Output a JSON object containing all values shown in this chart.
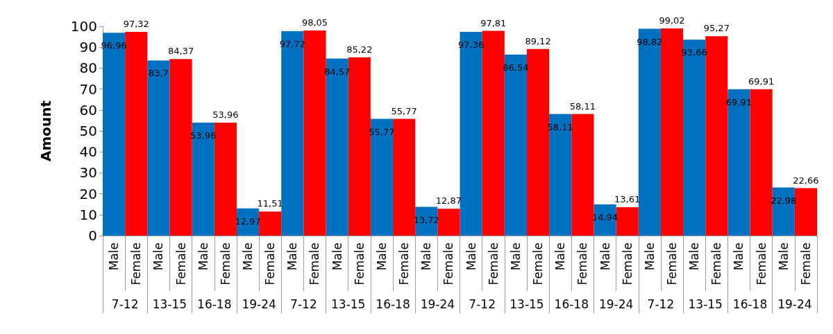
{
  "chart_data": {
    "type": "bar",
    "ylabel": "Amount",
    "categories": [
      "7-12",
      "13-15",
      "16-18",
      "19-24",
      "7-12",
      "13-15",
      "16-18",
      "19-24",
      "7-12",
      "13-15",
      "16-18",
      "19-24",
      "7-12",
      "13-15",
      "16-18",
      "19-24"
    ],
    "series": [
      {
        "name": "Male",
        "color": "#0070c0",
        "values": [
          96.96,
          83.7,
          53.96,
          12.97,
          97.72,
          84.57,
          55.77,
          13.72,
          97.36,
          86.54,
          58.11,
          14.94,
          98.82,
          93.66,
          69.91,
          22.98
        ],
        "value_labels": [
          "96,96",
          "83,7",
          "53,96",
          "12,97",
          "97,72",
          "84,57",
          "55,77",
          "13,72",
          "97,36",
          "86,54",
          "58,11",
          "14,94",
          "98,82",
          "93,66",
          "69,91",
          "22,98"
        ]
      },
      {
        "name": "Female",
        "color": "#ff0000",
        "values": [
          97.32,
          84.37,
          53.96,
          11.51,
          98.05,
          85.22,
          55.77,
          12.87,
          97.81,
          89.12,
          58.11,
          13.61,
          99.02,
          95.27,
          69.91,
          22.66
        ],
        "value_labels": [
          "97,32",
          "84,37",
          "53,96",
          "11,51",
          "98,05",
          "85,22",
          "55,77",
          "12,87",
          "97,81",
          "89,12",
          "58,11",
          "13,61",
          "99,02",
          "95,27",
          "69,91",
          "22,66"
        ]
      }
    ],
    "ylim": [
      0,
      100
    ],
    "yticks": [
      0,
      10,
      20,
      30,
      40,
      50,
      60,
      70,
      80,
      90,
      100
    ],
    "grid": false,
    "legend": false
  }
}
